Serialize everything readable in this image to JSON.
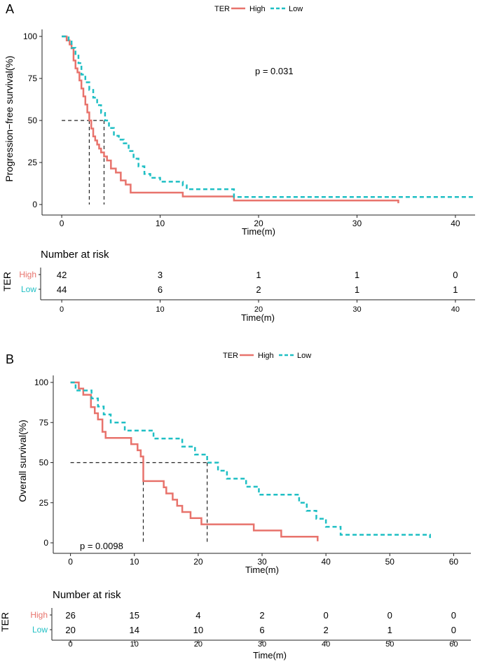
{
  "colors": {
    "high": "#E8736C",
    "low": "#1FBFC4",
    "axis": "#222222",
    "ref": "#222222"
  },
  "chart_data": [
    {
      "type": "line",
      "panel_label": "A",
      "legend": {
        "title": "TER",
        "position": "top",
        "series_labels": [
          "High",
          "Low"
        ]
      },
      "ylabel": "Progression−free survival(%)",
      "xlabel": "Time(m)",
      "xlim": [
        -2,
        42
      ],
      "ylim": [
        0,
        100
      ],
      "xticks": [
        0,
        10,
        20,
        30,
        40
      ],
      "yticks": [
        0,
        25,
        50,
        75,
        100
      ],
      "pvalue": "p = 0.031",
      "medians": [
        2.8,
        4.3
      ],
      "series": [
        {
          "name": "High",
          "style": "solid",
          "x": [
            0,
            0.5,
            0.8,
            1.0,
            1.2,
            1.4,
            1.6,
            1.8,
            2.0,
            2.2,
            2.4,
            2.6,
            2.8,
            3.0,
            3.2,
            3.4,
            3.6,
            3.8,
            4.0,
            4.3,
            4.6,
            5.0,
            5.5,
            6.0,
            6.5,
            7.0,
            12.3,
            17.5,
            34.2
          ],
          "y": [
            100,
            97.6,
            95.2,
            92.9,
            85.7,
            81.0,
            78.6,
            73.8,
            69.0,
            64.3,
            59.5,
            54.8,
            50.0,
            45.2,
            40.5,
            38.1,
            35.7,
            33.3,
            31.0,
            28.6,
            26.2,
            21.4,
            19.0,
            14.3,
            11.9,
            7.1,
            4.8,
            2.4,
            0.8
          ]
        },
        {
          "name": "Low",
          "style": "dashed",
          "x": [
            0,
            0.7,
            1.0,
            1.4,
            1.7,
            2.0,
            2.4,
            2.8,
            3.2,
            3.6,
            4.0,
            4.4,
            4.8,
            5.3,
            5.8,
            6.3,
            6.8,
            7.3,
            7.8,
            8.4,
            9.0,
            10.0,
            11.0,
            12.3,
            12.7,
            17.5,
            42
          ],
          "y": [
            100,
            97.7,
            93.2,
            88.6,
            84.1,
            77.3,
            72.7,
            68.2,
            63.6,
            59.1,
            54.5,
            50.0,
            45.5,
            40.9,
            38.6,
            36.4,
            31.8,
            27.3,
            22.7,
            18.2,
            15.9,
            13.6,
            13.6,
            11.4,
            9.1,
            4.5,
            4.5
          ]
        }
      ],
      "risk_table": {
        "title": "Number at risk",
        "group_label": "TER",
        "times": [
          0,
          10,
          20,
          30,
          40
        ],
        "xlabel": "Time(m)",
        "rows": [
          {
            "name": "High",
            "counts": [
              "42",
              "3",
              "1",
              "1",
              "0"
            ]
          },
          {
            "name": "Low",
            "counts": [
              "44",
              "6",
              "2",
              "1",
              "1"
            ]
          }
        ]
      }
    },
    {
      "type": "line",
      "panel_label": "B",
      "legend": {
        "title": "TER",
        "position": "top",
        "series_labels": [
          "High",
          "Low"
        ]
      },
      "ylabel": "Overall survival(%)",
      "xlabel": "Time(m)",
      "xlim": [
        -2.7,
        62.7
      ],
      "ylim": [
        0,
        100
      ],
      "xticks": [
        0,
        10,
        20,
        30,
        40,
        50,
        60
      ],
      "yticks": [
        0,
        25,
        50,
        75,
        100
      ],
      "pvalue": "p = 0.0098",
      "medians": [
        11.4,
        21.4
      ],
      "series": [
        {
          "name": "High",
          "style": "solid",
          "x": [
            0,
            1.3,
            2.0,
            3.2,
            3.8,
            4.3,
            5.0,
            5.5,
            9.5,
            10.5,
            11.0,
            11.4,
            14.6,
            15.0,
            16.0,
            16.7,
            17.5,
            18.8,
            19.5,
            20.5,
            21.5,
            28.7,
            33.0,
            38.7
          ],
          "y": [
            100,
            96.2,
            92.3,
            84.6,
            80.8,
            76.9,
            69.2,
            65.4,
            61.5,
            57.7,
            53.8,
            38.5,
            34.6,
            30.8,
            26.9,
            23.1,
            19.2,
            15.4,
            15.4,
            11.5,
            11.5,
            7.7,
            3.8,
            1.0
          ]
        },
        {
          "name": "Low",
          "style": "dashed",
          "x": [
            0,
            0.8,
            3.3,
            4.3,
            5.2,
            6.3,
            7.5,
            8.5,
            10.5,
            13.0,
            15.6,
            17.5,
            19.5,
            21.4,
            23.1,
            24.5,
            27.5,
            29.5,
            35.8,
            37.0,
            38.5,
            40.0,
            42.3,
            56.3
          ],
          "y": [
            100,
            95.0,
            90.0,
            85.0,
            80.0,
            75.0,
            75.0,
            70.0,
            70.0,
            65.0,
            65.0,
            60.0,
            55.0,
            50.0,
            45.0,
            40.0,
            35.0,
            30.0,
            25.0,
            20.0,
            15.0,
            10.0,
            5.0,
            3.0
          ]
        }
      ],
      "risk_table": {
        "title": "Number at risk",
        "group_label": "TER",
        "times": [
          0,
          10,
          20,
          30,
          40,
          50,
          60
        ],
        "xlabel": "Time(m)",
        "rows": [
          {
            "name": "High",
            "counts": [
              "26",
              "15",
              "4",
              "2",
              "0",
              "0",
              "0"
            ]
          },
          {
            "name": "Low",
            "counts": [
              "20",
              "14",
              "10",
              "6",
              "2",
              "1",
              "0"
            ]
          }
        ]
      }
    }
  ]
}
